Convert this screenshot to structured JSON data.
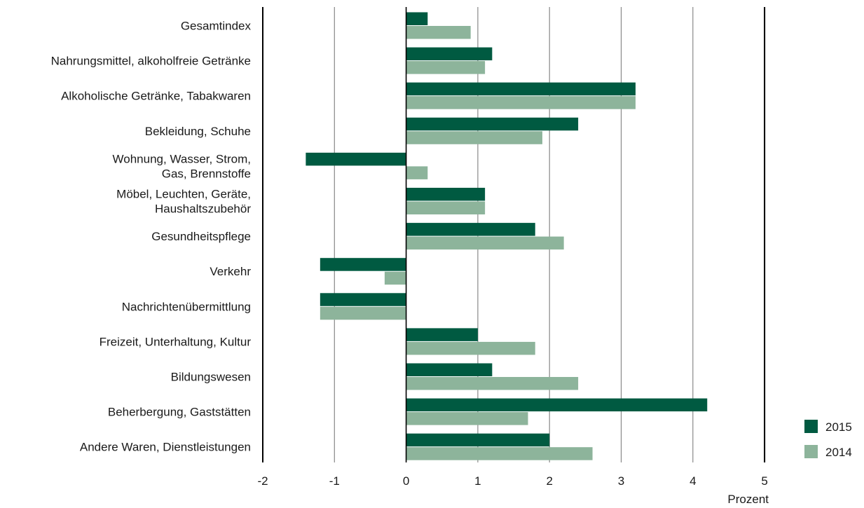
{
  "colors": {
    "2015": "#005a41",
    "2014": "#8db49b",
    "grid": "#888888",
    "axis": "#000000"
  },
  "chart_data": {
    "type": "bar",
    "orientation": "horizontal",
    "categories": [
      [
        "Gesamtindex"
      ],
      [
        "Nahrungsmittel, alkoholfreie Getränke"
      ],
      [
        "Alkoholische Getränke, Tabakwaren"
      ],
      [
        "Bekleidung, Schuhe"
      ],
      [
        "Wohnung, Wasser, Strom,",
        "Gas, Brennstoffe"
      ],
      [
        "Möbel, Leuchten, Geräte,",
        "Haushaltszubehör"
      ],
      [
        "Gesundheitspflege"
      ],
      [
        "Verkehr"
      ],
      [
        "Nachrichtenübermittlung"
      ],
      [
        "Freizeit, Unterhaltung, Kultur"
      ],
      [
        "Bildungswesen"
      ],
      [
        "Beherbergung, Gaststätten"
      ],
      [
        "Andere Waren, Dienstleistungen"
      ]
    ],
    "series": [
      {
        "name": "2015",
        "values": [
          0.3,
          1.2,
          3.2,
          2.4,
          -1.4,
          1.1,
          1.8,
          -1.2,
          -1.2,
          1.0,
          1.2,
          4.2,
          2.0
        ]
      },
      {
        "name": "2014",
        "values": [
          0.9,
          1.1,
          3.2,
          1.9,
          0.3,
          1.1,
          2.2,
          -0.3,
          -1.2,
          1.8,
          2.4,
          1.7,
          2.6
        ]
      }
    ],
    "xlim": [
      -2,
      5
    ],
    "xticks": [
      "-2",
      "-1",
      "0",
      "1",
      "2",
      "3",
      "4",
      "5"
    ],
    "xlabel": "Prozent",
    "grid": true,
    "legend_position": "bottom-right"
  }
}
